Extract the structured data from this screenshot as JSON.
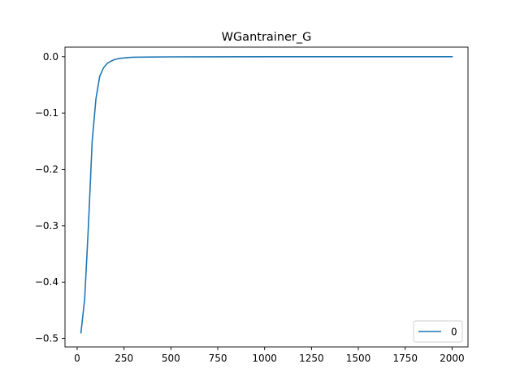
{
  "chart_data": {
    "type": "line",
    "title": "WGantrainer_G",
    "xlabel": "",
    "ylabel": "",
    "xlim": [
      -65,
      2085
    ],
    "ylim": [
      -0.515,
      0.017
    ],
    "xticks": [
      0,
      250,
      500,
      750,
      1000,
      1250,
      1500,
      1750,
      2000
    ],
    "xtick_labels": [
      "0",
      "250",
      "500",
      "750",
      "1000",
      "1250",
      "1500",
      "1750",
      "2000"
    ],
    "yticks": [
      -0.5,
      -0.4,
      -0.3,
      -0.2,
      -0.1,
      0.0
    ],
    "ytick_labels": [
      "−0.5",
      "−0.4",
      "−0.3",
      "−0.2",
      "−0.1",
      "0.0"
    ],
    "grid": false,
    "legend": {
      "position": "lower right"
    },
    "series": [
      {
        "name": "0",
        "color": "#1f77b4",
        "x": [
          20,
          40,
          60,
          80,
          100,
          120,
          140,
          160,
          180,
          200,
          220,
          240,
          260,
          280,
          300,
          350,
          400,
          500,
          700,
          1000,
          1500,
          2000
        ],
        "y": [
          -0.49,
          -0.43,
          -0.3,
          -0.15,
          -0.075,
          -0.035,
          -0.02,
          -0.012,
          -0.008,
          -0.005,
          -0.0035,
          -0.0025,
          -0.0018,
          -0.0013,
          -0.001,
          -0.0007,
          -0.0005,
          -0.0003,
          -0.0002,
          -0.0001,
          -5e-05,
          0.0
        ]
      }
    ]
  }
}
